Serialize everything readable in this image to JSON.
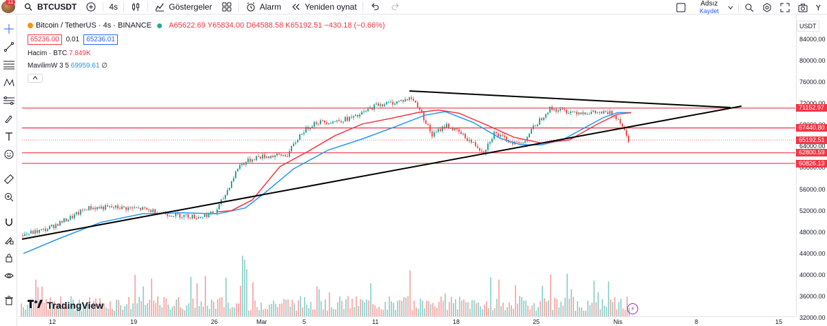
{
  "topbar": {
    "avatar_badge": "11",
    "symbol": "BTCUSDT",
    "interval": "4s",
    "indicators_label": "Göstergeler",
    "alarm_label": "Alarm",
    "replay_label": "Yeniden oynat",
    "user_name": "Adsız",
    "save_label": "Kaydet"
  },
  "legend": {
    "title": "Bitcoin / TetherUS · 4s · BINANCE",
    "open": "A65622.69",
    "high": "Y65834.00",
    "low": "D64588.58",
    "close": "K65192.51",
    "change": "−430.18 (−0.66%)",
    "bid": "65236.00",
    "spread": "0.01",
    "ask": "65236.01"
  },
  "volume": {
    "label": "Hacim · BTC",
    "value": "7.849K"
  },
  "ma": {
    "label": "MavilimW 3 5",
    "value": "69959.61",
    "extra": "∅"
  },
  "price_axis": {
    "currency": "USDT",
    "ticks": [
      "84000.00",
      "80000.00",
      "76000.00",
      "72000.00",
      "68000.00",
      "64000.00",
      "60000.00",
      "56000.00",
      "52000.00",
      "48000.00",
      "44000.00",
      "40000.00",
      "36000.00",
      "32000.00"
    ],
    "labels": [
      {
        "text": "71152.97",
        "color": "#f23645"
      },
      {
        "text": "67440.80",
        "color": "#f23645"
      },
      {
        "text": "65192.51",
        "color": "#f23645"
      },
      {
        "text": "62800.59",
        "color": "#f23645"
      },
      {
        "text": "60826.13",
        "color": "#f23645"
      }
    ]
  },
  "time_axis": [
    "12",
    "19",
    "26",
    "Mar",
    "5",
    "11",
    "18",
    "25",
    "Nis",
    "8",
    "15"
  ],
  "brand": "TradingView",
  "colors": {
    "up": "#26a69a",
    "down": "#ef5350",
    "ma_blue": "#2196f3",
    "ma_red": "#f23645",
    "hline": "#f23645",
    "trend": "#000000"
  }
}
